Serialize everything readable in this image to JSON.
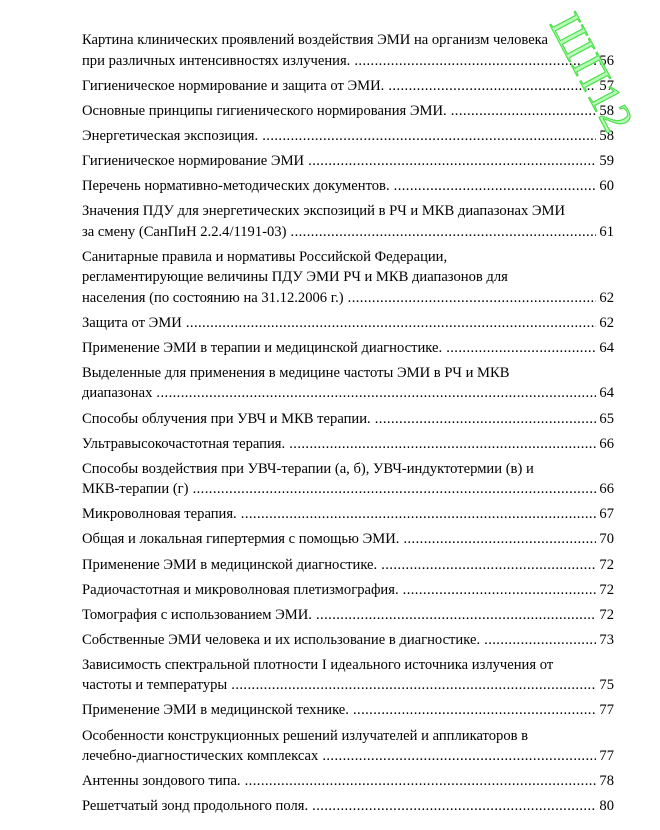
{
  "watermark": "ШП12",
  "watermark_color": "#66f566",
  "entries": [
    {
      "lines": [
        "Картина клинических проявлений воздействия ЭМИ на организм человека",
        "при различных интенсивностях излучения."
      ],
      "page": "56"
    },
    {
      "lines": [
        "Гигиеническое нормирование и защита от ЭМИ."
      ],
      "page": "57"
    },
    {
      "lines": [
        "Основные принципы гигиенического нормирования ЭМИ."
      ],
      "page": "58"
    },
    {
      "lines": [
        "Энергетическая экспозиция."
      ],
      "page": "58"
    },
    {
      "lines": [
        "Гигиеническое нормирование ЭМИ"
      ],
      "page": "59"
    },
    {
      "lines": [
        "Перечень нормативно-методических документов."
      ],
      "page": "60"
    },
    {
      "lines": [
        "Значения ПДУ для энергетических экспозиций в РЧ и МКВ диапазонах ЭМИ",
        "за смену (СанПиН 2.2.4/1191-03)"
      ],
      "page": "61"
    },
    {
      "lines": [
        "Санитарные правила и нормативы Российской Федерации,",
        "регламентирующие величины ПДУ ЭМИ РЧ и МКВ диапазонов для",
        "населения (по состоянию на 31.12.2006 г.)"
      ],
      "page": "62"
    },
    {
      "lines": [
        "Защита от ЭМИ"
      ],
      "page": "62"
    },
    {
      "lines": [
        "Применение ЭМИ в терапии и медицинской диагностике."
      ],
      "page": "64"
    },
    {
      "lines": [
        "Выделенные для применения в медицине частоты ЭМИ в РЧ и МКВ",
        "диапазонах"
      ],
      "page": "64"
    },
    {
      "lines": [
        "Способы облучения при УВЧ и МКВ терапии."
      ],
      "page": "65"
    },
    {
      "lines": [
        "Ультравысокочастотная терапия."
      ],
      "page": "66"
    },
    {
      "lines": [
        "Способы воздействия при УВЧ-терапии (а, б), УВЧ-индуктотермии (в) и",
        "МКВ-терапии (г)"
      ],
      "page": "66"
    },
    {
      "lines": [
        "Микроволновая терапия."
      ],
      "page": "67"
    },
    {
      "lines": [
        "Общая и локальная гипертермия с помощью ЭМИ."
      ],
      "page": "70"
    },
    {
      "lines": [
        "Применение ЭМИ в медицинской диагностике."
      ],
      "page": "72"
    },
    {
      "lines": [
        "Радиочастотная и микроволновая плетизмография."
      ],
      "page": "72"
    },
    {
      "lines": [
        "Томография с использованием ЭМИ."
      ],
      "page": "72"
    },
    {
      "lines": [
        "Собственные ЭМИ человека и их использование в диагностике."
      ],
      "page": "73"
    },
    {
      "lines": [
        "Зависимость спектральной плотности I идеального источника излучения от",
        "частоты и температуры"
      ],
      "page": "75"
    },
    {
      "lines": [
        "Применение ЭМИ в медицинской технике."
      ],
      "page": "77"
    },
    {
      "lines": [
        "Особенности конструкционных решений излучателей и аппликаторов в",
        "лечебно-диагностических комплексах"
      ],
      "page": "77"
    },
    {
      "lines": [
        "Антенны зондового типа."
      ],
      "page": "78"
    },
    {
      "lines": [
        "Решетчатый зонд продольного поля."
      ],
      "page": "80"
    }
  ]
}
